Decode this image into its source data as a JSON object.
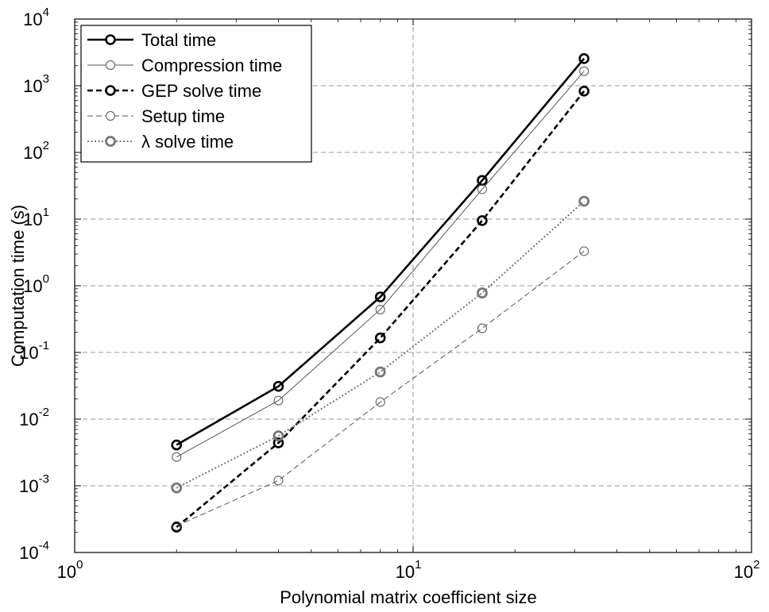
{
  "chart_data": {
    "type": "line",
    "title": "",
    "xlabel": "Polynomial matrix coefficient size",
    "ylabel": "Computation time (s)",
    "xscale": "log",
    "yscale": "log",
    "xlim": [
      1,
      100
    ],
    "ylim": [
      0.0001,
      10000
    ],
    "x_ticks": [
      {
        "base": "10",
        "exp": "0",
        "value": 1
      },
      {
        "base": "10",
        "exp": "1",
        "value": 10
      },
      {
        "base": "10",
        "exp": "2",
        "value": 100
      }
    ],
    "y_ticks": [
      {
        "base": "10",
        "exp": "-4",
        "value": 0.0001
      },
      {
        "base": "10",
        "exp": "-3",
        "value": 0.001
      },
      {
        "base": "10",
        "exp": "-2",
        "value": 0.01
      },
      {
        "base": "10",
        "exp": "-1",
        "value": 0.1
      },
      {
        "base": "10",
        "exp": "0",
        "value": 1
      },
      {
        "base": "10",
        "exp": "1",
        "value": 10
      },
      {
        "base": "10",
        "exp": "2",
        "value": 100
      },
      {
        "base": "10",
        "exp": "3",
        "value": 1000
      },
      {
        "base": "10",
        "exp": "4",
        "value": 10000
      }
    ],
    "grid": true,
    "legend_position": "top-left",
    "x": [
      2,
      4,
      8,
      16,
      32
    ],
    "series": [
      {
        "name": "Total time",
        "values": [
          0.0041,
          0.031,
          0.68,
          38,
          2550
        ],
        "style": "solid-thick",
        "color": "#000000"
      },
      {
        "name": "Compression time",
        "values": [
          0.0027,
          0.019,
          0.44,
          28,
          1650
        ],
        "style": "solid-thin",
        "color": "#555555"
      },
      {
        "name": "GEP solve time",
        "values": [
          0.00024,
          0.0044,
          0.165,
          9.5,
          830
        ],
        "style": "dashed-thick",
        "color": "#000000"
      },
      {
        "name": "Setup time",
        "values": [
          0.00025,
          0.0012,
          0.018,
          0.23,
          3.3
        ],
        "style": "dashed-thin",
        "color": "#555555"
      },
      {
        "name": "λ solve time",
        "values": [
          0.00093,
          0.0056,
          0.051,
          0.78,
          18.5
        ],
        "style": "dotted",
        "color": "#777777"
      }
    ]
  }
}
